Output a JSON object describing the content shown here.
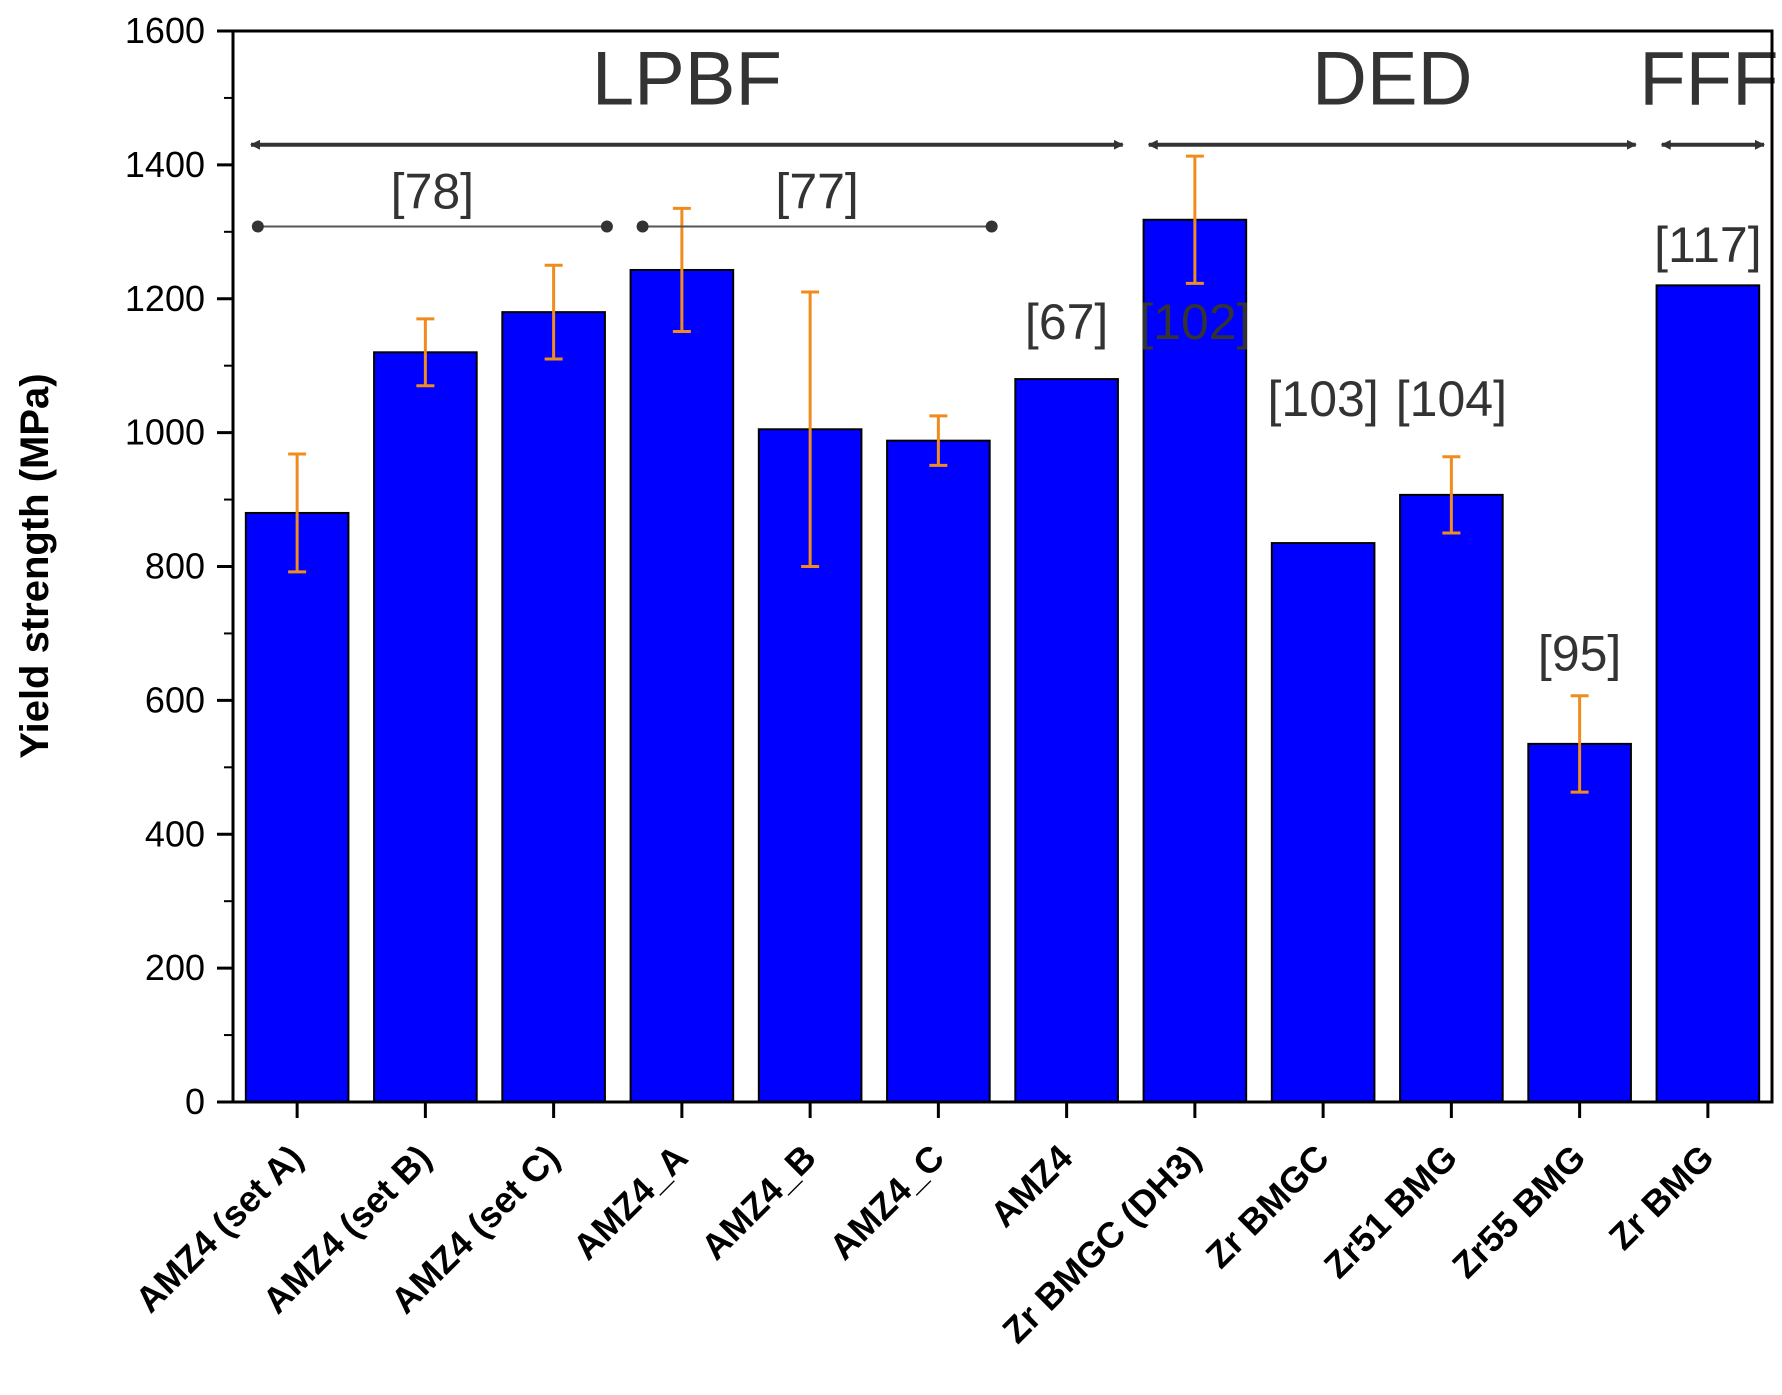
{
  "chart_data": {
    "type": "bar",
    "title": "",
    "xlabel": "",
    "ylabel": "Yield strength (MPa)",
    "ylim": [
      0,
      1600
    ],
    "yticks": [
      0,
      200,
      400,
      600,
      800,
      1000,
      1200,
      1400,
      1600
    ],
    "grid": false,
    "categories": [
      "AMZ4 (set A)",
      "AMZ4 (set B)",
      "AMZ4 (set C)",
      "AMZ4_A",
      "AMZ4_B",
      "AMZ4_C",
      "AMZ4",
      "Zr BMGC (DH3)",
      "Zr BMGC",
      "Zr51 BMG",
      "Zr55 BMG",
      "Zr BMG"
    ],
    "values": [
      880,
      1120,
      1180,
      1243,
      1005,
      988,
      1080,
      1318,
      835,
      907,
      535,
      1220
    ],
    "errors": [
      88,
      50,
      70,
      92,
      205,
      37,
      null,
      95,
      null,
      57,
      72,
      null
    ],
    "bar_color": "#0000ff",
    "error_color": "#f08c1e",
    "groups": [
      {
        "label": "LPBF",
        "from": 0,
        "to": 6
      },
      {
        "label": "DED",
        "from": 7,
        "to": 10
      },
      {
        "label": "FFF",
        "from": 11,
        "to": 11
      }
    ],
    "references": [
      {
        "label": "[78]",
        "from": 0,
        "to": 2,
        "value": 1308
      },
      {
        "label": "[77]",
        "from": 3,
        "to": 5,
        "value": 1308
      },
      {
        "label": "[67]",
        "at": 6,
        "value": 1140
      },
      {
        "label": "[102]",
        "at": 7,
        "value": 1140
      },
      {
        "label": "[103]",
        "at": 8,
        "value": 1025
      },
      {
        "label": "[104]",
        "at": 9,
        "value": 1025
      },
      {
        "label": "[95]",
        "at": 10,
        "value": 645
      },
      {
        "label": "[117]",
        "at": 11,
        "value": 1255
      }
    ]
  }
}
